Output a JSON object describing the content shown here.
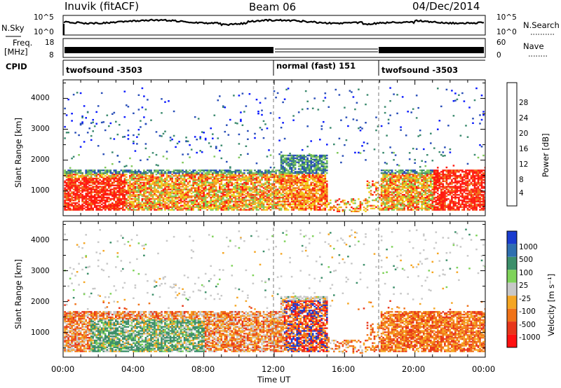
{
  "header": {
    "station": "Inuvik (fitACF)",
    "beam": "Beam 06",
    "date": "04/Dec/2014"
  },
  "noise_panel": {
    "left_label": "N.Sky",
    "left_ticks": [
      "10^5",
      "10^0"
    ],
    "right_label": "N.Search",
    "right_ticks": [
      "10^5",
      "10^0"
    ]
  },
  "freq_panel": {
    "left_label_1": "Freq.",
    "left_label_2": "[MHz]",
    "left_ticks": [
      "18",
      "8"
    ],
    "right_label": "Nave",
    "right_ticks": [
      "60",
      "0"
    ]
  },
  "cpid_panel": {
    "label": "CPID",
    "segments": [
      "twofsound -3503",
      "normal (fast) 151",
      "twofsound -3503"
    ]
  },
  "power_panel": {
    "ylabel": "Slant Range [km]",
    "yticks": [
      "1000",
      "2000",
      "3000",
      "4000"
    ],
    "colorbar_label": "Power [dB]",
    "colorbar_ticks": [
      "4",
      "8",
      "12",
      "16",
      "20",
      "24",
      "28"
    ],
    "colors": [
      "#0a1aff",
      "#2a4fb8",
      "#3b8a6e",
      "#7fc85a",
      "#f2d21c",
      "#f5a623",
      "#f07218",
      "#ff1a10"
    ]
  },
  "velocity_panel": {
    "ylabel": "Slant Range [km]",
    "yticks": [
      "1000",
      "2000",
      "3000",
      "4000"
    ],
    "colorbar_label": "Velocity [m s⁻¹]",
    "colorbar_ticks": [
      "1000",
      "500",
      "100",
      "25",
      "-25",
      "-100",
      "-500",
      "-1000"
    ],
    "colors": [
      "#1a3ccf",
      "#2f6fb0",
      "#3c8f6a",
      "#7fd35a",
      "#c8c8c8",
      "#f5a623",
      "#f07218",
      "#e8361a",
      "#ff1010"
    ]
  },
  "xaxis": {
    "label": "Time UT",
    "ticks": [
      "00:00",
      "04:00",
      "08:00",
      "12:00",
      "16:00",
      "20:00",
      "00:00"
    ]
  },
  "chart_data": {
    "type": "heatmap",
    "title": "Inuvik (fitACF)  Beam 06  04/Dec/2014",
    "xlabel": "Time UT",
    "ylabel": "Slant Range [km]",
    "xlim": [
      "00:00",
      "24:00"
    ],
    "ylim": [
      200,
      4600
    ],
    "power_levels_dB": [
      4,
      8,
      12,
      16,
      20,
      24,
      28
    ],
    "velocity_levels_ms": [
      -1000,
      -500,
      -100,
      -25,
      25,
      100,
      500,
      1000
    ],
    "cpid_switches_UT": [
      "12:00",
      "18:00"
    ],
    "echo_regions": [
      {
        "region": "near-range band",
        "t_start_h": 0.0,
        "t_end_h": 24.0,
        "range_km": [
          400,
          1700
        ]
      },
      {
        "region": "strong red power",
        "t_start_h": 0.3,
        "t_end_h": 3.5,
        "range_km": [
          400,
          1400
        ],
        "power_dB": 28
      },
      {
        "region": "ionospheric patch",
        "t_start_h": 12.8,
        "t_end_h": 15.0,
        "range_km": [
          1000,
          2100
        ]
      },
      {
        "region": "strong red power",
        "t_start_h": 21.0,
        "t_end_h": 24.0,
        "range_km": [
          400,
          1800
        ],
        "power_dB": 28
      }
    ]
  }
}
